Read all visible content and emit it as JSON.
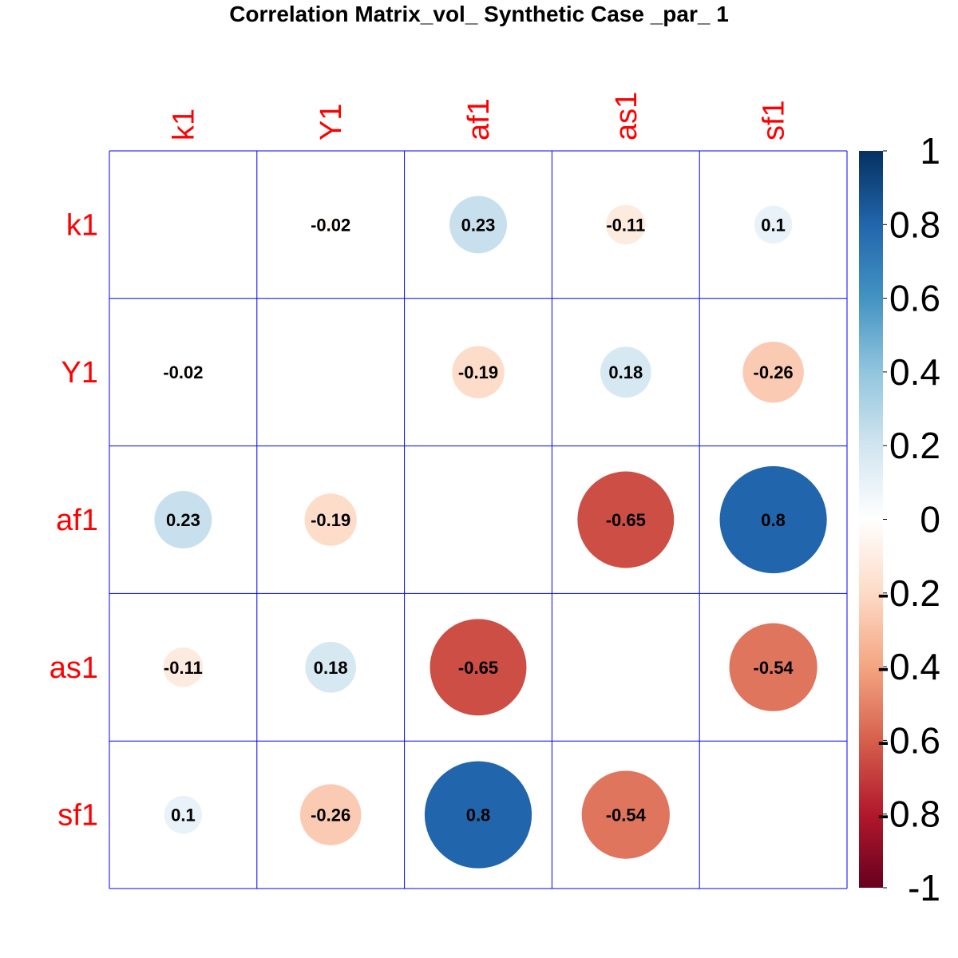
{
  "chart_data": {
    "type": "heatmap",
    "title": "Correlation Matrix_vol_ Synthetic Case _par_ 1",
    "variables": [
      "k1",
      "Y1",
      "af1",
      "as1",
      "sf1"
    ],
    "matrix": [
      [
        null,
        -0.02,
        0.23,
        -0.11,
        0.1
      ],
      [
        -0.02,
        null,
        -0.19,
        0.18,
        -0.26
      ],
      [
        0.23,
        -0.19,
        null,
        -0.65,
        0.8
      ],
      [
        -0.11,
        0.18,
        -0.65,
        null,
        -0.54
      ],
      [
        0.1,
        -0.26,
        0.8,
        -0.54,
        null
      ]
    ],
    "colorbar_ticks": [
      1,
      0.8,
      0.6,
      0.4,
      0.2,
      0,
      -0.2,
      -0.4,
      -0.6,
      -0.8,
      -1
    ],
    "colorbar_range": [
      -1,
      1
    ],
    "colorscale": [
      "#67001F",
      "#B2182B",
      "#D6604D",
      "#F4A582",
      "#FDDBC7",
      "#FFFFFF",
      "#D1E5F0",
      "#92C5DE",
      "#4393C3",
      "#2166AC",
      "#053061"
    ],
    "label_color": "#FF0000",
    "grid_color": "#0000FF"
  }
}
